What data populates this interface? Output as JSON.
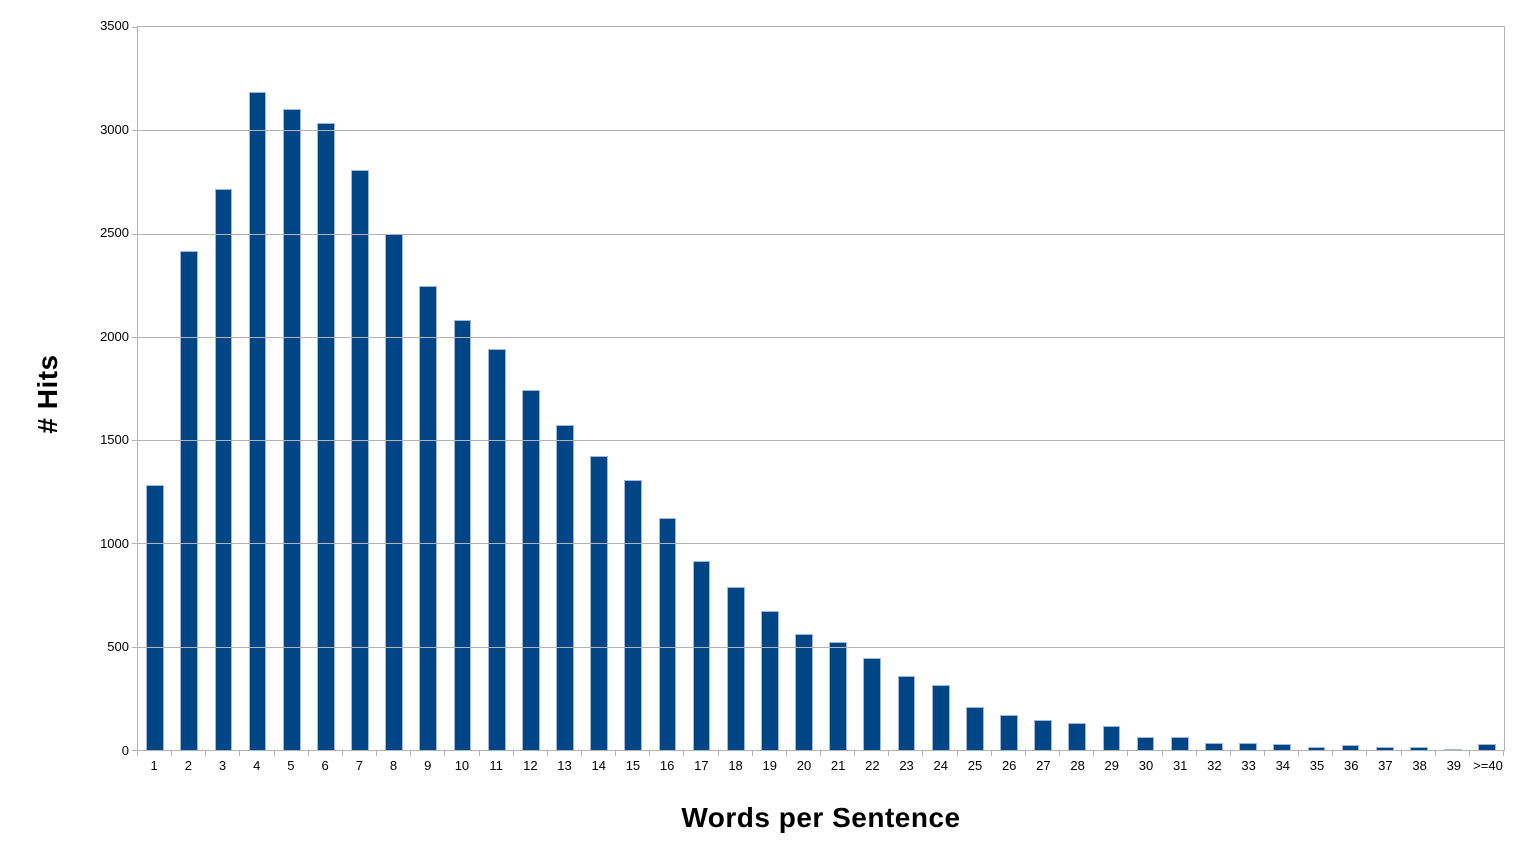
{
  "chart_data": {
    "type": "bar",
    "title": "",
    "xlabel": "Words per Sentence",
    "ylabel": "# Hits",
    "categories": [
      "1",
      "2",
      "3",
      "4",
      "5",
      "6",
      "7",
      "8",
      "9",
      "10",
      "11",
      "12",
      "13",
      "14",
      "15",
      "16",
      "17",
      "18",
      "19",
      "20",
      "21",
      "22",
      "23",
      "24",
      "25",
      "26",
      "27",
      "28",
      "29",
      "30",
      "31",
      "32",
      "33",
      "34",
      "35",
      "36",
      "37",
      "38",
      "39",
      ">=40"
    ],
    "values": [
      1285,
      2415,
      2715,
      3185,
      3105,
      3035,
      2810,
      2500,
      2245,
      2080,
      1940,
      1745,
      1575,
      1425,
      1305,
      1125,
      915,
      790,
      675,
      560,
      525,
      445,
      360,
      315,
      210,
      170,
      145,
      130,
      115,
      62,
      65,
      35,
      35,
      30,
      17,
      22,
      16,
      14,
      6,
      27
    ],
    "ylim": [
      0,
      3500
    ],
    "ytick_interval": 500,
    "grid": true,
    "legend": "none",
    "bar_color": "#004586",
    "bar_border_color": "#a3b8d9",
    "grid_color": "#b3b3b3",
    "axis_color": "#b3b3b3",
    "text_color": "#000000",
    "background": "#ffffff"
  }
}
